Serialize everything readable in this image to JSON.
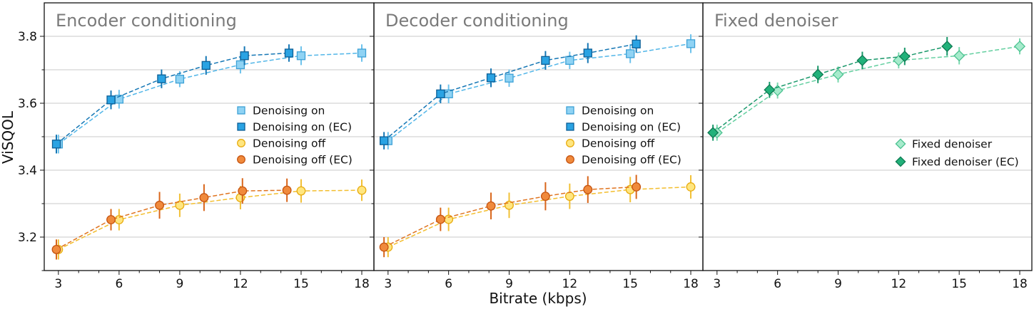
{
  "figure": {
    "ylabel": "ViSQOL",
    "xlabel": "Bitrate (kbps)"
  },
  "colors": {
    "on_light": "#8fd3f4",
    "on_light_stroke": "#3da1d6",
    "on_dark": "#2aa3e3",
    "on_dark_stroke": "#0d5f96",
    "off_light": "#ffe680",
    "off_light_stroke": "#e8ac10",
    "off_dark": "#f08a3c",
    "off_dark_stroke": "#c65512",
    "fix_light": "#a6ebcc",
    "fix_light_stroke": "#4cc291",
    "fix_dark": "#22b17a",
    "fix_dark_stroke": "#0e7a52",
    "panel_title": "#7a7a7a",
    "grid": "#c8c8c8"
  },
  "chart_data": [
    {
      "type": "scatter",
      "title": "Encoder conditioning",
      "xlabel": "Bitrate (kbps)",
      "ylabel": "ViSQOL",
      "xlim": [
        2.3,
        18.6
      ],
      "ylim": [
        3.1,
        3.9
      ],
      "xticks": [
        3,
        6,
        9,
        12,
        15,
        18
      ],
      "yticks": [
        3.2,
        3.4,
        3.6,
        3.8
      ],
      "grid": true,
      "legend_position": "center-right",
      "series": [
        {
          "name": "Denoising on",
          "marker": "square",
          "style": "light",
          "color": "#8fd3f4",
          "x": [
            3,
            6,
            9,
            12,
            15,
            18
          ],
          "y": [
            3.478,
            3.612,
            3.672,
            3.715,
            3.742,
            3.75
          ],
          "err": [
            0.028,
            0.028,
            0.024,
            0.026,
            0.028,
            0.026
          ]
        },
        {
          "name": "Denoising on (EC)",
          "marker": "square",
          "style": "dark",
          "color": "#2aa3e3",
          "x": [
            2.9,
            5.6,
            8.1,
            10.3,
            12.2,
            14.4
          ],
          "y": [
            3.478,
            3.61,
            3.673,
            3.713,
            3.742,
            3.75
          ],
          "err": [
            0.028,
            0.028,
            0.028,
            0.028,
            0.028,
            0.026
          ]
        },
        {
          "name": "Denoising off",
          "marker": "circle",
          "style": "light",
          "color": "#ffe680",
          "x": [
            3,
            6,
            9,
            12,
            15,
            18
          ],
          "y": [
            3.163,
            3.252,
            3.295,
            3.318,
            3.338,
            3.34
          ],
          "err": [
            0.03,
            0.032,
            0.035,
            0.035,
            0.035,
            0.032
          ]
        },
        {
          "name": "Denoising off (EC)",
          "marker": "circle",
          "style": "dark",
          "color": "#f08a3c",
          "x": [
            2.9,
            5.6,
            8.0,
            10.2,
            12.1,
            14.3
          ],
          "y": [
            3.163,
            3.252,
            3.295,
            3.318,
            3.338,
            3.34
          ],
          "err": [
            0.03,
            0.032,
            0.04,
            0.04,
            0.038,
            0.035
          ]
        }
      ]
    },
    {
      "type": "scatter",
      "title": "Decoder conditioning",
      "xlabel": "Bitrate (kbps)",
      "ylabel": "ViSQOL",
      "xlim": [
        2.3,
        18.6
      ],
      "ylim": [
        3.1,
        3.9
      ],
      "xticks": [
        3,
        6,
        9,
        12,
        15,
        18
      ],
      "yticks": [
        3.2,
        3.4,
        3.6,
        3.8
      ],
      "grid": true,
      "legend_position": "center-right",
      "series": [
        {
          "name": "Denoising on",
          "marker": "square",
          "style": "light",
          "color": "#8fd3f4",
          "x": [
            3,
            6,
            9,
            12,
            15,
            18
          ],
          "y": [
            3.488,
            3.628,
            3.675,
            3.728,
            3.748,
            3.778
          ],
          "err": [
            0.026,
            0.028,
            0.026,
            0.026,
            0.028,
            0.028
          ]
        },
        {
          "name": "Denoising on (EC)",
          "marker": "square",
          "style": "dark",
          "color": "#2aa3e3",
          "x": [
            2.8,
            5.6,
            8.1,
            10.8,
            12.9,
            15.3
          ],
          "y": [
            3.488,
            3.628,
            3.676,
            3.728,
            3.75,
            3.777
          ],
          "err": [
            0.026,
            0.028,
            0.028,
            0.028,
            0.03,
            0.026
          ]
        },
        {
          "name": "Denoising off",
          "marker": "circle",
          "style": "light",
          "color": "#ffe680",
          "x": [
            3,
            6,
            9,
            12,
            15,
            18
          ],
          "y": [
            3.17,
            3.253,
            3.295,
            3.322,
            3.342,
            3.35
          ],
          "err": [
            0.03,
            0.035,
            0.038,
            0.038,
            0.038,
            0.035
          ]
        },
        {
          "name": "Denoising off (EC)",
          "marker": "circle",
          "style": "dark",
          "color": "#f08a3c",
          "x": [
            2.8,
            5.6,
            8.1,
            10.8,
            12.9,
            15.3
          ],
          "y": [
            3.17,
            3.253,
            3.293,
            3.322,
            3.342,
            3.35
          ],
          "err": [
            0.03,
            0.035,
            0.04,
            0.042,
            0.04,
            0.036
          ]
        }
      ]
    },
    {
      "type": "scatter",
      "title": "Fixed denoiser",
      "xlabel": "Bitrate (kbps)",
      "ylabel": "ViSQOL",
      "xlim": [
        2.3,
        18.6
      ],
      "ylim": [
        3.1,
        3.9
      ],
      "xticks": [
        3,
        6,
        9,
        12,
        15,
        18
      ],
      "yticks": [
        3.2,
        3.4,
        3.6,
        3.8
      ],
      "grid": true,
      "legend_position": "center-right",
      "series": [
        {
          "name": "Fixed denoiser",
          "marker": "diamond",
          "style": "light",
          "color": "#a6ebcc",
          "x": [
            3,
            6,
            9,
            12,
            15,
            18
          ],
          "y": [
            3.512,
            3.638,
            3.686,
            3.728,
            3.742,
            3.77
          ],
          "err": [
            0.024,
            0.024,
            0.024,
            0.024,
            0.026,
            0.024
          ]
        },
        {
          "name": "Fixed denoiser (EC)",
          "marker": "diamond",
          "style": "dark",
          "color": "#22b17a",
          "x": [
            2.8,
            5.6,
            8.0,
            10.2,
            12.3,
            14.4
          ],
          "y": [
            3.512,
            3.64,
            3.686,
            3.728,
            3.74,
            3.77
          ],
          "err": [
            0.024,
            0.024,
            0.026,
            0.026,
            0.026,
            0.028
          ]
        }
      ]
    }
  ]
}
